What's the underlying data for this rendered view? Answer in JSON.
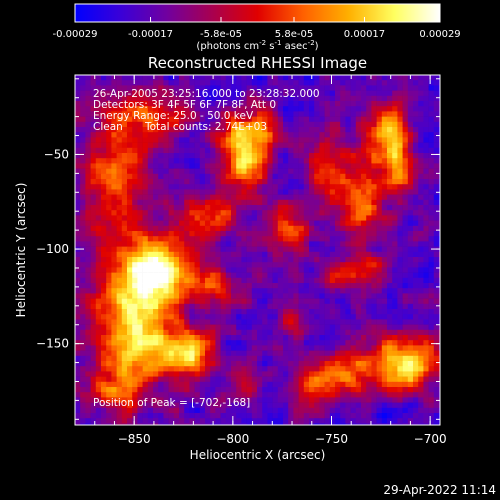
{
  "colorbar": {
    "tick_labels": [
      "-0.00029",
      "-0.00017",
      "-5.8e-05",
      "5.8e-05",
      "0.00017",
      "0.00029"
    ],
    "tick_values": [
      -0.00029,
      -0.00017,
      -5.8e-05,
      5.8e-05,
      0.00017,
      0.00029
    ],
    "range": [
      -0.00029,
      0.00029
    ],
    "unit_label": {
      "pre": "(photons cm",
      "e1": "-2",
      "mid1": " s",
      "e2": "-1",
      "mid2": " asec",
      "e3": "-2",
      "post": ")"
    },
    "palette": [
      "#0000ff",
      "#3a00d8",
      "#7000a0",
      "#a80050",
      "#e00000",
      "#ff6000",
      "#ffb000",
      "#ffff60",
      "#ffffff"
    ]
  },
  "chart_data": {
    "type": "heatmap",
    "title": "Reconstructed RHESSI Image",
    "xlabel": "Heliocentric X (arcsec)",
    "ylabel": "Heliocentric Y (arcsec)",
    "xlim": [
      -880,
      -695
    ],
    "ylim": [
      -193,
      -8
    ],
    "x_ticks": [
      -850,
      -800,
      -750,
      -700
    ],
    "x_tick_labels": [
      "−850",
      "−800",
      "−750",
      "−700"
    ],
    "y_ticks": [
      -50,
      -100,
      -150
    ],
    "y_tick_labels": [
      "−50",
      "−100",
      "−150"
    ],
    "grid": false,
    "peak": [
      -702,
      -168
    ],
    "hot_regions": [
      {
        "x": -850,
        "y": -140,
        "sx": 15,
        "sy": 25,
        "amp": 1.3
      },
      {
        "x": -837,
        "y": -110,
        "sx": 12,
        "sy": 12,
        "amp": 1.15
      },
      {
        "x": -822,
        "y": -155,
        "sx": 10,
        "sy": 8,
        "amp": 0.9
      },
      {
        "x": -860,
        "y": -60,
        "sx": 12,
        "sy": 25,
        "amp": 0.75
      },
      {
        "x": -840,
        "y": -30,
        "sx": 12,
        "sy": 10,
        "amp": 0.65
      },
      {
        "x": -795,
        "y": -55,
        "sx": 8,
        "sy": 10,
        "amp": 1.05
      },
      {
        "x": -790,
        "y": -38,
        "sx": 12,
        "sy": 8,
        "amp": 0.9
      },
      {
        "x": -812,
        "y": -82,
        "sx": 10,
        "sy": 8,
        "amp": 0.8
      },
      {
        "x": -772,
        "y": -90,
        "sx": 8,
        "sy": 10,
        "amp": 0.8
      },
      {
        "x": -752,
        "y": -55,
        "sx": 8,
        "sy": 12,
        "amp": 0.7
      },
      {
        "x": -810,
        "y": -120,
        "sx": 10,
        "sy": 8,
        "amp": 0.6
      },
      {
        "x": -722,
        "y": -40,
        "sx": 8,
        "sy": 10,
        "amp": 1.2
      },
      {
        "x": -735,
        "y": -75,
        "sx": 8,
        "sy": 14,
        "amp": 0.9
      },
      {
        "x": -715,
        "y": -60,
        "sx": 6,
        "sy": 8,
        "amp": 0.8
      },
      {
        "x": -732,
        "y": -110,
        "sx": 8,
        "sy": 6,
        "amp": 0.6
      },
      {
        "x": -712,
        "y": -160,
        "sx": 12,
        "sy": 10,
        "amp": 1.3
      },
      {
        "x": -742,
        "y": -165,
        "sx": 8,
        "sy": 8,
        "amp": 0.8
      },
      {
        "x": -760,
        "y": -170,
        "sx": 8,
        "sy": 8,
        "amp": 0.7
      },
      {
        "x": -770,
        "y": -140,
        "sx": 6,
        "sy": 6,
        "amp": 0.55
      },
      {
        "x": -795,
        "y": -170,
        "sx": 6,
        "sy": 6,
        "amp": 0.55
      },
      {
        "x": -862,
        "y": -175,
        "sx": 8,
        "sy": 6,
        "amp": 0.6
      },
      {
        "x": -748,
        "y": -115,
        "sx": 5,
        "sy": 5,
        "amp": 0.6
      }
    ]
  },
  "info": {
    "time_range": "26-Apr-2005 23:25:16.000 to 23:28:32.000",
    "detectors": "Detectors: 3F 4F 5F 6F 7F 8F, Att 0",
    "energy_range": "Energy Range: 25.0 - 50.0 keV",
    "method": "Clean",
    "total_counts": "Total counts: 2.74E+03",
    "peak_position": "Position of Peak = [-702,-168]"
  },
  "footer": {
    "date": "29-Apr-2022 11:14"
  }
}
